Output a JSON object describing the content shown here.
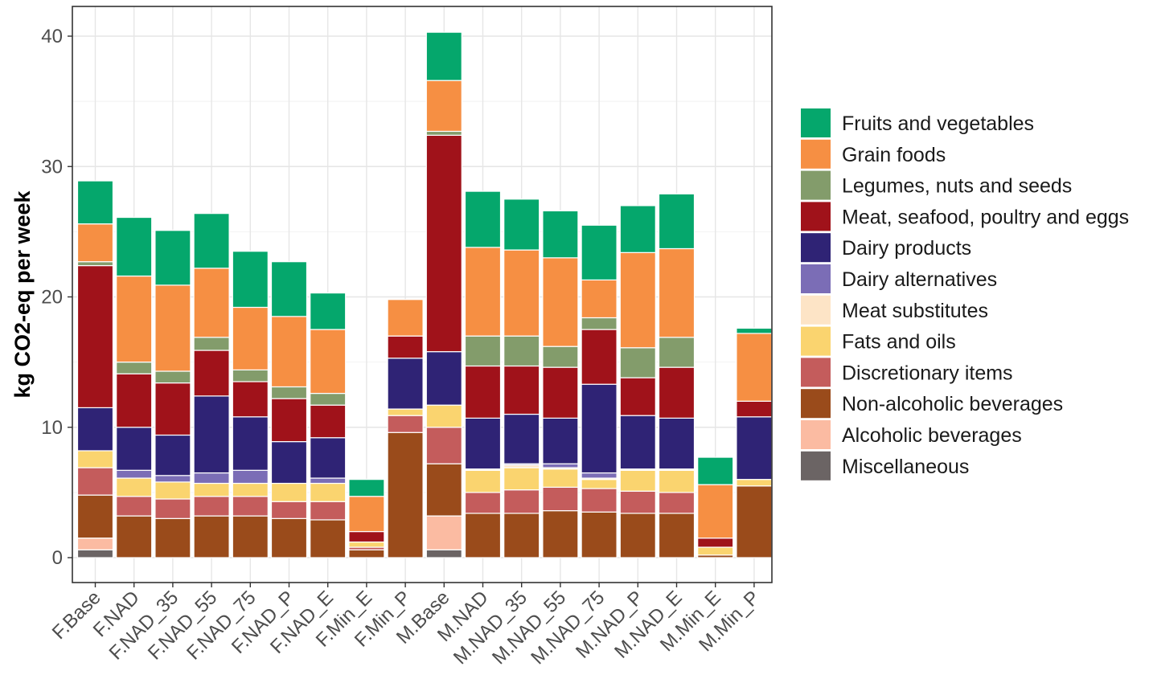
{
  "chart_data": {
    "type": "bar",
    "stacked": true,
    "title": "",
    "xlabel": "",
    "ylabel": "kg CO2-eq per week",
    "ylim": [
      -2,
      42
    ],
    "yticks": [
      0,
      10,
      20,
      30,
      40
    ],
    "grid": true,
    "legend_position": "right",
    "categories": [
      "F.Base",
      "F.NAD",
      "F.NAD_35",
      "F.NAD_55",
      "F.NAD_75",
      "F.NAD_P",
      "F.NAD_E",
      "F.Min_E",
      "F.Min_P",
      "M.Base",
      "M.NAD",
      "M.NAD_35",
      "M.NAD_55",
      "M.NAD_75",
      "M.NAD_P",
      "M.NAD_E",
      "M.Min_E",
      "M.Min_P"
    ],
    "series": [
      {
        "name": "Miscellaneous",
        "color": "#6b6464",
        "values": [
          0.6,
          0,
          0,
          0,
          0,
          0,
          0,
          0,
          0,
          0.6,
          0,
          0,
          0,
          0,
          0,
          0,
          0,
          0
        ]
      },
      {
        "name": "Alcoholic beverages",
        "color": "#fbbba2",
        "values": [
          0.9,
          0,
          0,
          0,
          0,
          0,
          0,
          0,
          0,
          2.6,
          0,
          0,
          0,
          0,
          0,
          0,
          0,
          0
        ]
      },
      {
        "name": "Non-alcoholic beverages",
        "color": "#9a4b1b",
        "values": [
          3.3,
          3.2,
          3.0,
          3.2,
          3.2,
          3.0,
          2.9,
          0.6,
          9.6,
          4.0,
          3.4,
          3.4,
          3.6,
          3.5,
          3.4,
          3.4,
          0.2,
          5.5
        ]
      },
      {
        "name": "Discretionary items",
        "color": "#c45c5c",
        "values": [
          2.1,
          1.5,
          1.5,
          1.5,
          1.5,
          1.3,
          1.4,
          0.2,
          1.3,
          2.8,
          1.6,
          1.8,
          1.8,
          1.8,
          1.7,
          1.6,
          0,
          0
        ]
      },
      {
        "name": "Fats and oils",
        "color": "#fad46f",
        "values": [
          1.3,
          1.4,
          1.3,
          1.0,
          1.0,
          1.4,
          1.4,
          0.4,
          0.5,
          1.7,
          1.7,
          1.7,
          1.4,
          0.7,
          1.6,
          1.7,
          0.6,
          0.5
        ]
      },
      {
        "name": "Meat substitutes",
        "color": "#fde4c6",
        "values": [
          0,
          0,
          0,
          0,
          0,
          0,
          0,
          0,
          0,
          0,
          0.1,
          0.2,
          0.1,
          0.1,
          0.1,
          0.1,
          0,
          0
        ]
      },
      {
        "name": "Dairy alternatives",
        "color": "#7b6db6",
        "values": [
          0,
          0.6,
          0.5,
          0.8,
          1.0,
          0,
          0.4,
          0,
          0,
          0,
          0,
          0.1,
          0.3,
          0.4,
          0,
          0,
          0,
          0
        ]
      },
      {
        "name": "Dairy products",
        "color": "#2f2375",
        "values": [
          3.3,
          3.3,
          3.1,
          5.9,
          4.1,
          3.2,
          3.1,
          0,
          3.9,
          4.1,
          3.9,
          3.8,
          3.5,
          6.8,
          4.1,
          3.9,
          0,
          4.8
        ]
      },
      {
        "name": "Meat, seafood, poultry and eggs",
        "color": "#a0121a",
        "values": [
          10.9,
          4.1,
          4.0,
          3.5,
          2.7,
          3.3,
          2.5,
          0.8,
          1.7,
          16.6,
          4.0,
          3.7,
          3.9,
          4.2,
          2.9,
          3.9,
          0.7,
          1.2
        ]
      },
      {
        "name": "Legumes, nuts and seeds",
        "color": "#839c6b",
        "values": [
          0.3,
          0.9,
          0.9,
          1.0,
          0.9,
          0.9,
          0.9,
          0,
          0,
          0.3,
          2.3,
          2.3,
          1.6,
          0.9,
          2.3,
          2.3,
          0,
          0
        ]
      },
      {
        "name": "Grain foods",
        "color": "#f68f43",
        "values": [
          2.9,
          6.6,
          6.6,
          5.3,
          4.8,
          5.4,
          4.9,
          2.7,
          2.8,
          3.9,
          6.8,
          6.6,
          6.8,
          2.9,
          7.3,
          6.8,
          4.1,
          5.2
        ]
      },
      {
        "name": "Fruits and vegetables",
        "color": "#05a76c",
        "values": [
          3.3,
          4.5,
          4.2,
          4.2,
          4.3,
          4.2,
          2.8,
          1.3,
          0,
          3.7,
          4.3,
          3.9,
          3.6,
          4.2,
          3.6,
          4.2,
          2.1,
          0.4
        ]
      }
    ],
    "legend_order": [
      "Fruits and vegetables",
      "Grain foods",
      "Legumes, nuts and seeds",
      "Meat, seafood, poultry and eggs",
      "Dairy products",
      "Dairy alternatives",
      "Meat substitutes",
      "Fats and oils",
      "Discretionary items",
      "Non-alcoholic beverages",
      "Alcoholic beverages",
      "Miscellaneous"
    ]
  }
}
